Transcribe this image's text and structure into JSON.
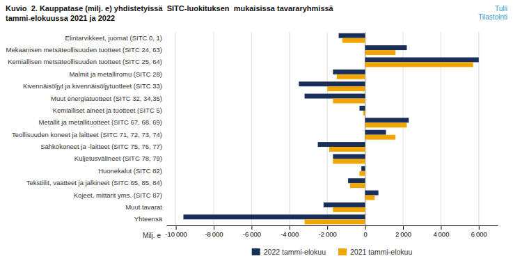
{
  "chart_data": {
    "type": "bar",
    "orientation": "horizontal",
    "title": "Kuvio  2. Kauppatase (milj. e) yhdistetyissä  SITC-luokituksen  mukaisissa tavararyhmissä\ntammi-elokuussa 2021 ja 2022",
    "annotations": [
      {
        "text": "Tulli\nTilastointi"
      }
    ],
    "xlabel": "Milj. e",
    "categories": [
      "Elintarvikkeet, juomat (SITC 0, 1)",
      "Mekaanisen metsäteollisuuden tuotteet (SITC 24, 63)",
      "Kemiallisen metsäteollisuuden tuotteet (SITC 25, 64)",
      "Malmit ja metalliromu (SITC 28)",
      "Kivennäisöljyt ja kivennäisöljytuotteet (SITC 33)",
      "Muut energiatuotteet (SITC 32, 34,35)",
      "Kemialliset aineet ja tuotteet (SITC 5)",
      "Metallit ja metallituotteet (SITC 67, 68, 69)",
      "Teollisuuden koneet ja laitteet (SITC 71, 72, 73, 74)",
      "Sähkökoneet ja -laitteet (SITC 75, 76, 77)",
      "Kuljetusvälineet (SITC 78, 79)",
      "Huonekalut (SITC 82)",
      "Tekstiilit, vaatteet ja jalkineet (SITC 65, 85, 84)",
      "Kojeet, mittarit yms. (SITC 87)",
      "Muut tavarat",
      "Yhteensä"
    ],
    "series": [
      {
        "name": "2022 tammi-elokuu",
        "color": "#1a2e5a",
        "values": [
          -1400,
          2200,
          6000,
          -1700,
          -3500,
          -3200,
          -300,
          2300,
          1100,
          -2500,
          -1700,
          -200,
          -900,
          700,
          -2200,
          -9600
        ]
      },
      {
        "name": "2021 tammi-elokuu",
        "color": "#f0a500",
        "values": [
          -1200,
          1600,
          5700,
          -1500,
          -2000,
          -1700,
          -100,
          2200,
          1600,
          -1900,
          -1700,
          -300,
          -800,
          500,
          -1700,
          -3200
        ]
      }
    ],
    "xlim": [
      -10500,
      7000
    ],
    "xticks": [
      {
        "value": -10000,
        "label": "-10 000"
      },
      {
        "value": -8000,
        "label": "-8 000"
      },
      {
        "value": -6000,
        "label": "-6 000"
      },
      {
        "value": -4000,
        "label": "-4 000"
      },
      {
        "value": -2000,
        "label": "-2 000"
      },
      0,
      {
        "value": 2000,
        "label": "2 000"
      },
      {
        "value": 4000,
        "label": "4 000"
      },
      {
        "value": 6000,
        "label": "6 000"
      }
    ],
    "grid": true,
    "legend": "bottom"
  }
}
